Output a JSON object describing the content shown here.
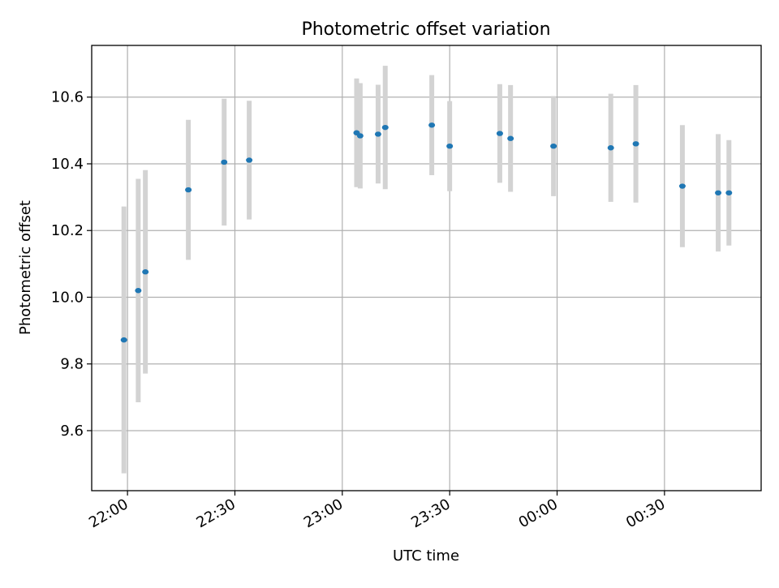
{
  "colors": {
    "point": "#1f77b4",
    "errorbar": "#d3d3d3",
    "grid": "#b0b0b0",
    "axes": "#000000",
    "background": "#ffffff"
  },
  "chart_data": {
    "type": "scatter",
    "title": "Photometric offset variation",
    "xlabel": "UTC time",
    "ylabel": "Photometric offset",
    "x_axis": "time",
    "xlim": [
      "21:50",
      "00:57"
    ],
    "ylim": [
      9.42,
      10.755
    ],
    "grid": true,
    "legend": "none",
    "x_ticks": [
      "22:00",
      "22:30",
      "23:00",
      "23:30",
      "00:00",
      "00:30"
    ],
    "y_ticks": [
      "9.6",
      "9.8",
      "10.0",
      "10.2",
      "10.4",
      "10.6"
    ],
    "y_tick_values": [
      9.6,
      9.8,
      10.0,
      10.2,
      10.4,
      10.6
    ],
    "series": [
      {
        "points": [
          {
            "x": "21:59",
            "y": 9.872,
            "yerr": 0.4
          },
          {
            "x": "22:03",
            "y": 10.02,
            "yerr": 0.335
          },
          {
            "x": "22:05",
            "y": 10.076,
            "yerr": 0.305
          },
          {
            "x": "22:17",
            "y": 10.322,
            "yerr": 0.21
          },
          {
            "x": "22:27",
            "y": 10.405,
            "yerr": 0.19
          },
          {
            "x": "22:34",
            "y": 10.411,
            "yerr": 0.178
          },
          {
            "x": "23:04",
            "y": 10.493,
            "yerr": 0.163
          },
          {
            "x": "23:05",
            "y": 10.484,
            "yerr": 0.158
          },
          {
            "x": "23:10",
            "y": 10.489,
            "yerr": 0.148
          },
          {
            "x": "23:12",
            "y": 10.509,
            "yerr": 0.185
          },
          {
            "x": "23:25",
            "y": 10.516,
            "yerr": 0.15
          },
          {
            "x": "23:30",
            "y": 10.453,
            "yerr": 0.135
          },
          {
            "x": "23:44",
            "y": 10.491,
            "yerr": 0.148
          },
          {
            "x": "23:47",
            "y": 10.476,
            "yerr": 0.16
          },
          {
            "x": "23:59",
            "y": 10.453,
            "yerr": 0.15
          },
          {
            "x": "00:15",
            "y": 10.448,
            "yerr": 0.162
          },
          {
            "x": "00:22",
            "y": 10.46,
            "yerr": 0.176
          },
          {
            "x": "00:35",
            "y": 10.333,
            "yerr": 0.183
          },
          {
            "x": "00:45",
            "y": 10.313,
            "yerr": 0.176
          },
          {
            "x": "00:48",
            "y": 10.313,
            "yerr": 0.158
          }
        ]
      }
    ]
  }
}
